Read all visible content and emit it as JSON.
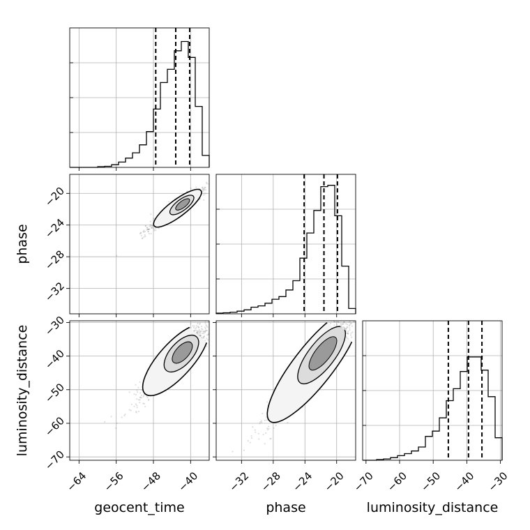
{
  "chart_data": {
    "type": "corner",
    "parameters": [
      "geocent_time",
      "phase",
      "luminosity_distance"
    ],
    "axis_titles": {
      "bottom": [
        "geocent_time",
        "phase",
        "luminosity_distance"
      ],
      "left": [
        "",
        "phase",
        "luminosity_distance"
      ]
    },
    "ranges": {
      "geocent_time": [
        -66,
        -36
      ],
      "phase": [
        -35.2,
        -17.6
      ],
      "luminosity_distance": [
        -71,
        -29.5
      ]
    },
    "ticks": {
      "geocent_time": [
        -64,
        -56,
        -48,
        -40
      ],
      "phase": [
        -32,
        -28,
        -24,
        -20
      ],
      "luminosity_distance": [
        -70,
        -60,
        -50,
        -40,
        -30
      ]
    },
    "tick_labels": {
      "geocent_time": [
        "−64",
        "−56",
        "−48",
        "−40"
      ],
      "phase": [
        "−32",
        "−28",
        "−24",
        "−20"
      ],
      "luminosity_distance": [
        "−70",
        "−60",
        "−50",
        "−40",
        "−30"
      ]
    },
    "quantiles": {
      "geocent_time": [
        -47.5,
        -43.2,
        -40.2
      ],
      "phase": [
        -24.1,
        -21.6,
        -19.9
      ],
      "luminosity_distance": [
        -45.5,
        -39.5,
        -35.5
      ]
    },
    "histograms": {
      "geocent_time": {
        "edges": [
          -66,
          -64.5,
          -63,
          -61.5,
          -60,
          -58.5,
          -57,
          -55.5,
          -54,
          -52.5,
          -51,
          -49.5,
          -48,
          -46.5,
          -45,
          -43.5,
          -42,
          -40.5,
          -39,
          -37.5,
          -36
        ],
        "heights": [
          0.0,
          0.0,
          0.0,
          0.0,
          0.005,
          0.008,
          0.02,
          0.04,
          0.07,
          0.11,
          0.17,
          0.27,
          0.44,
          0.64,
          0.74,
          0.88,
          0.95,
          0.83,
          0.46,
          0.09
        ]
      },
      "phase": {
        "edges": [
          -35.2,
          -34.32,
          -33.44,
          -32.56,
          -31.68,
          -30.8,
          -29.92,
          -29.04,
          -28.16,
          -27.28,
          -26.4,
          -25.52,
          -24.64,
          -23.76,
          -22.88,
          -22.0,
          -21.12,
          -20.24,
          -19.36,
          -18.48,
          -17.6
        ],
        "heights": [
          0.005,
          0.008,
          0.012,
          0.02,
          0.03,
          0.05,
          0.06,
          0.08,
          0.11,
          0.13,
          0.18,
          0.25,
          0.42,
          0.61,
          0.78,
          0.96,
          0.97,
          0.74,
          0.36,
          0.04
        ]
      },
      "luminosity_distance": {
        "edges": [
          -71,
          -68.925,
          -66.85,
          -64.775,
          -62.7,
          -60.625,
          -58.55,
          -56.475,
          -54.4,
          -52.325,
          -50.25,
          -48.175,
          -46.1,
          -44.025,
          -41.95,
          -39.875,
          -37.8,
          -35.725,
          -33.65,
          -31.575,
          -29.5
        ],
        "heights": [
          0.0,
          0.0,
          0.005,
          0.01,
          0.02,
          0.035,
          0.05,
          0.07,
          0.1,
          0.18,
          0.22,
          0.32,
          0.45,
          0.54,
          0.67,
          0.78,
          0.78,
          0.68,
          0.48,
          0.17
        ]
      }
    },
    "correlation_panels": [
      {
        "x": "geocent_time",
        "y": "phase",
        "center": [
          -41.5,
          -21.3
        ],
        "std_major": 4.8,
        "std_minor": 0.55,
        "angle_deg": 37
      },
      {
        "x": "geocent_time",
        "y": "luminosity_distance",
        "center": [
          -41.5,
          -38.5
        ],
        "std_major": 7.5,
        "std_minor": 1.1,
        "angle_deg": 48
      },
      {
        "x": "phase",
        "y": "luminosity_distance",
        "center": [
          -21.5,
          -38.5
        ],
        "std_major": 6.8,
        "std_minor": 0.75,
        "angle_deg": 52
      }
    ],
    "grid": true,
    "legend": "none"
  }
}
